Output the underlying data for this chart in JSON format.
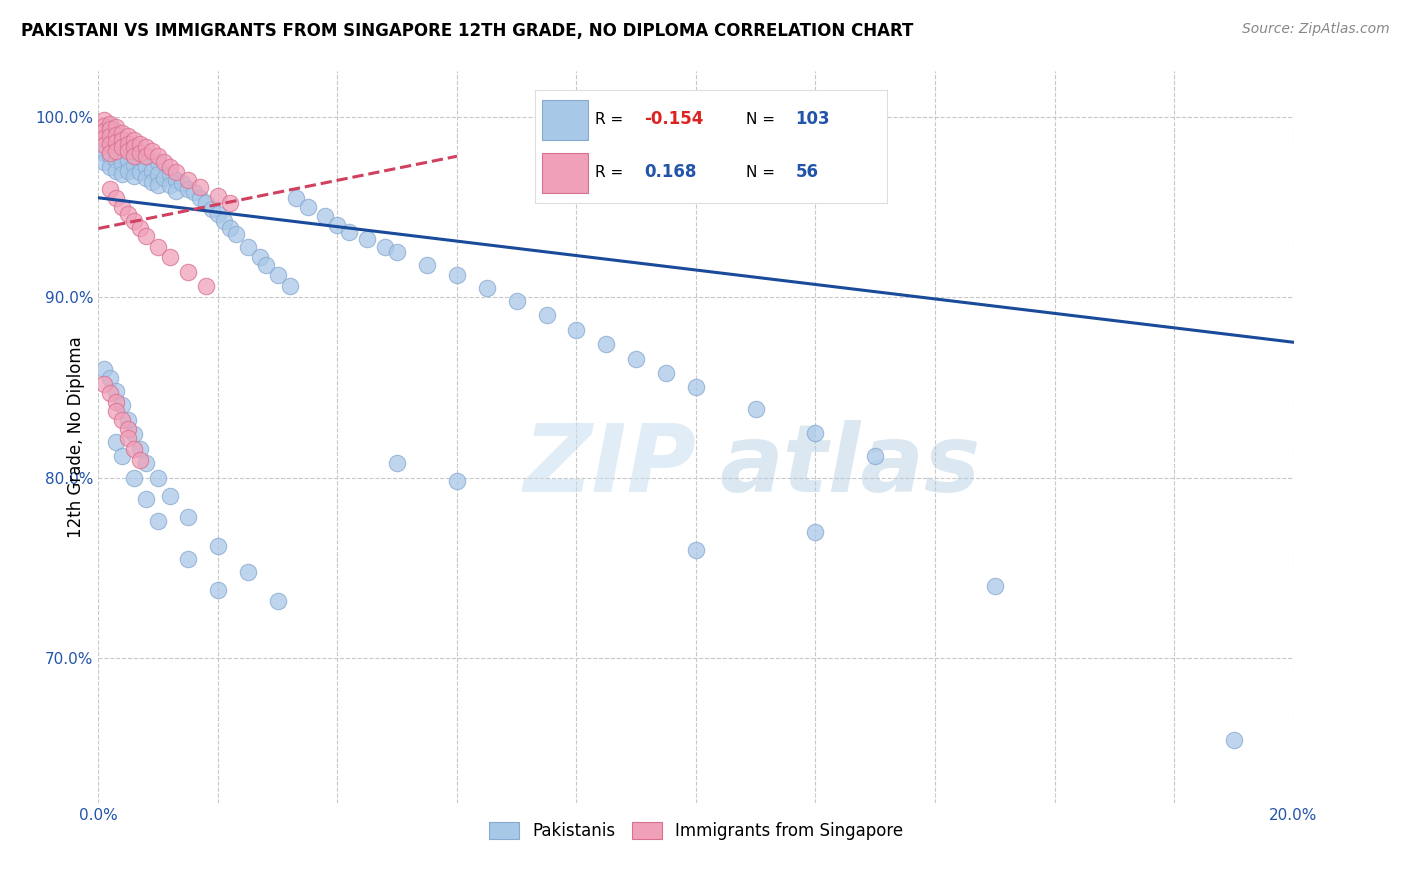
{
  "title": "PAKISTANI VS IMMIGRANTS FROM SINGAPORE 12TH GRADE, NO DIPLOMA CORRELATION CHART",
  "source": "Source: ZipAtlas.com",
  "ylabel": "12th Grade, No Diploma",
  "xlim": [
    0.0,
    0.2
  ],
  "ylim": [
    0.62,
    1.025
  ],
  "xticks": [
    0.0,
    0.02,
    0.04,
    0.06,
    0.08,
    0.1,
    0.12,
    0.14,
    0.16,
    0.18,
    0.2
  ],
  "xticklabels": [
    "0.0%",
    "",
    "",
    "",
    "",
    "",
    "",
    "",
    "",
    "",
    "20.0%"
  ],
  "ytick_positions": [
    0.7,
    0.8,
    0.9,
    1.0
  ],
  "ytick_labels": [
    "70.0%",
    "80.0%",
    "90.0%",
    "100.0%"
  ],
  "blue_color": "#a8c8e8",
  "blue_edge_color": "#88a8d0",
  "blue_line_color": "#1a4a9a",
  "pink_color": "#f0a0b8",
  "pink_edge_color": "#d87090",
  "pink_line_color": "#d04060",
  "legend_R1": "-0.154",
  "legend_N1": "103",
  "legend_R2": "0.168",
  "legend_N2": "56",
  "blue_trendline_x": [
    0.0,
    0.2
  ],
  "blue_trendline_y": [
    0.955,
    0.875
  ],
  "pink_trendline_x": [
    0.0,
    0.06
  ],
  "pink_trendline_y": [
    0.938,
    0.978
  ],
  "pakistanis_x": [
    0.001,
    0.001,
    0.001,
    0.001,
    0.002,
    0.002,
    0.002,
    0.002,
    0.002,
    0.003,
    0.003,
    0.003,
    0.003,
    0.003,
    0.004,
    0.004,
    0.004,
    0.004,
    0.005,
    0.005,
    0.005,
    0.006,
    0.006,
    0.006,
    0.007,
    0.007,
    0.008,
    0.008,
    0.009,
    0.009,
    0.01,
    0.01,
    0.01,
    0.011,
    0.012,
    0.012,
    0.013,
    0.013,
    0.014,
    0.015,
    0.016,
    0.017,
    0.018,
    0.019,
    0.02,
    0.021,
    0.022,
    0.023,
    0.025,
    0.027,
    0.028,
    0.03,
    0.032,
    0.033,
    0.035,
    0.038,
    0.04,
    0.042,
    0.045,
    0.048,
    0.05,
    0.055,
    0.06,
    0.065,
    0.07,
    0.075,
    0.08,
    0.085,
    0.09,
    0.095,
    0.1,
    0.11,
    0.12,
    0.13,
    0.001,
    0.002,
    0.003,
    0.004,
    0.005,
    0.006,
    0.007,
    0.008,
    0.01,
    0.012,
    0.015,
    0.02,
    0.025,
    0.03,
    0.003,
    0.004,
    0.006,
    0.008,
    0.01,
    0.015,
    0.02,
    0.05,
    0.06,
    0.12,
    0.1,
    0.15,
    0.19
  ],
  "pakistanis_y": [
    0.99,
    0.985,
    0.98,
    0.975,
    0.995,
    0.99,
    0.985,
    0.978,
    0.972,
    0.992,
    0.988,
    0.983,
    0.976,
    0.97,
    0.985,
    0.979,
    0.974,
    0.968,
    0.982,
    0.976,
    0.97,
    0.978,
    0.973,
    0.967,
    0.975,
    0.969,
    0.972,
    0.966,
    0.97,
    0.964,
    0.975,
    0.968,
    0.962,
    0.966,
    0.968,
    0.962,
    0.965,
    0.959,
    0.963,
    0.96,
    0.958,
    0.955,
    0.952,
    0.949,
    0.946,
    0.942,
    0.938,
    0.935,
    0.928,
    0.922,
    0.918,
    0.912,
    0.906,
    0.955,
    0.95,
    0.945,
    0.94,
    0.936,
    0.932,
    0.928,
    0.925,
    0.918,
    0.912,
    0.905,
    0.898,
    0.89,
    0.882,
    0.874,
    0.866,
    0.858,
    0.85,
    0.838,
    0.825,
    0.812,
    0.86,
    0.855,
    0.848,
    0.84,
    0.832,
    0.824,
    0.816,
    0.808,
    0.8,
    0.79,
    0.778,
    0.762,
    0.748,
    0.732,
    0.82,
    0.812,
    0.8,
    0.788,
    0.776,
    0.755,
    0.738,
    0.808,
    0.798,
    0.77,
    0.76,
    0.74,
    0.655
  ],
  "singapore_x": [
    0.001,
    0.001,
    0.001,
    0.001,
    0.001,
    0.002,
    0.002,
    0.002,
    0.002,
    0.002,
    0.003,
    0.003,
    0.003,
    0.003,
    0.004,
    0.004,
    0.004,
    0.005,
    0.005,
    0.005,
    0.006,
    0.006,
    0.006,
    0.007,
    0.007,
    0.008,
    0.008,
    0.009,
    0.01,
    0.011,
    0.012,
    0.013,
    0.015,
    0.017,
    0.02,
    0.022,
    0.002,
    0.003,
    0.004,
    0.005,
    0.006,
    0.007,
    0.008,
    0.01,
    0.012,
    0.015,
    0.018,
    0.001,
    0.002,
    0.003,
    0.003,
    0.004,
    0.005,
    0.005,
    0.006,
    0.007
  ],
  "singapore_y": [
    0.998,
    0.995,
    0.992,
    0.988,
    0.984,
    0.996,
    0.993,
    0.989,
    0.985,
    0.98,
    0.994,
    0.99,
    0.986,
    0.981,
    0.991,
    0.987,
    0.983,
    0.989,
    0.985,
    0.981,
    0.987,
    0.983,
    0.978,
    0.985,
    0.98,
    0.983,
    0.978,
    0.981,
    0.978,
    0.975,
    0.972,
    0.969,
    0.965,
    0.961,
    0.956,
    0.952,
    0.96,
    0.955,
    0.95,
    0.946,
    0.942,
    0.938,
    0.934,
    0.928,
    0.922,
    0.914,
    0.906,
    0.852,
    0.847,
    0.842,
    0.837,
    0.832,
    0.827,
    0.822,
    0.816,
    0.81
  ]
}
